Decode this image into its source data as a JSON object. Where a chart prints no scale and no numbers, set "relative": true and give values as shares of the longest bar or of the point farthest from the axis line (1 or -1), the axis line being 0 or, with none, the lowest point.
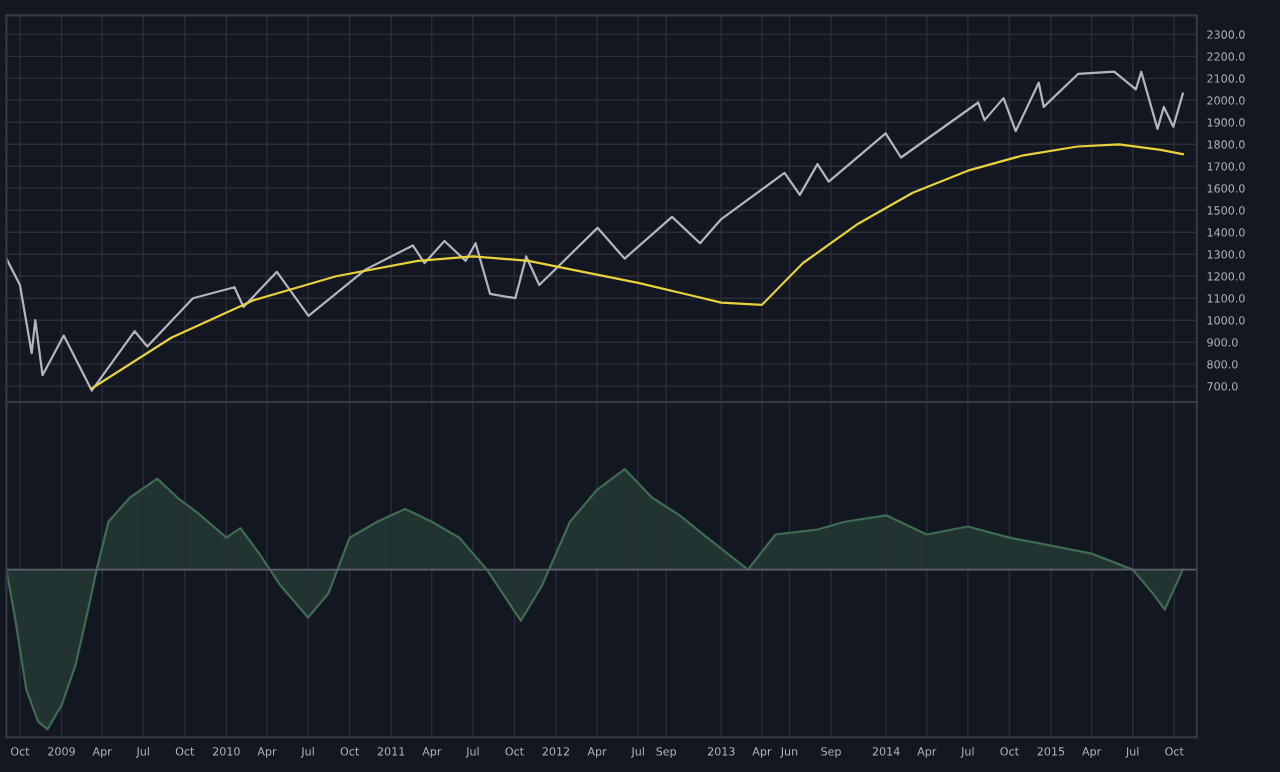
{
  "chart_data": [
    {
      "type": "line",
      "grid": true,
      "tick_labels": "y",
      "xlim": [
        "2008-09-01",
        "2015-11-20"
      ],
      "xticks": [
        {
          "value": "2008-10-01",
          "label": null
        },
        {
          "value": "2009-01-01",
          "label": null
        },
        {
          "value": "2009-04-01",
          "label": null
        },
        {
          "value": "2009-07-01",
          "label": null
        },
        {
          "value": "2009-10-01",
          "label": null
        },
        {
          "value": "2010-01-01",
          "label": null
        },
        {
          "value": "2010-04-01",
          "label": null
        },
        {
          "value": "2010-07-01",
          "label": null
        },
        {
          "value": "2010-10-01",
          "label": null
        },
        {
          "value": "2011-01-01",
          "label": null
        },
        {
          "value": "2011-04-01",
          "label": null
        },
        {
          "value": "2011-07-01",
          "label": null
        },
        {
          "value": "2011-10-01",
          "label": null
        },
        {
          "value": "2012-01-01",
          "label": null
        },
        {
          "value": "2012-04-01",
          "label": null
        },
        {
          "value": "2012-07-01",
          "label": null
        },
        {
          "value": "2012-09-01",
          "label": null
        },
        {
          "value": "2013-01-01",
          "label": null
        },
        {
          "value": "2013-04-01",
          "label": null
        },
        {
          "value": "2013-06-01",
          "label": null
        },
        {
          "value": "2013-09-01",
          "label": null
        },
        {
          "value": "2014-01-01",
          "label": null
        },
        {
          "value": "2014-04-01",
          "label": null
        },
        {
          "value": "2014-07-01",
          "label": null
        },
        {
          "value": "2014-10-01",
          "label": null
        },
        {
          "value": "2015-01-01",
          "label": null
        },
        {
          "value": "2015-04-01",
          "label": null
        },
        {
          "value": "2015-07-01",
          "label": null
        },
        {
          "value": "2015-10-01",
          "label": null
        }
      ],
      "ylim": [
        628,
        2386
      ],
      "yticks": [
        {
          "value": 700,
          "label": "700.0"
        },
        {
          "value": 800,
          "label": "800.0"
        },
        {
          "value": 900,
          "label": "900.0"
        },
        {
          "value": 1000,
          "label": "1000.0"
        },
        {
          "value": 1100,
          "label": "1100.0"
        },
        {
          "value": 1200,
          "label": "1200.0"
        },
        {
          "value": 1300,
          "label": "1300.0"
        },
        {
          "value": 1400,
          "label": "1400.0"
        },
        {
          "value": 1500,
          "label": "1500.0"
        },
        {
          "value": 1600,
          "label": "1600.0"
        },
        {
          "value": 1700,
          "label": "1700.0"
        },
        {
          "value": 1800,
          "label": "1800.0"
        },
        {
          "value": 1900,
          "label": "1900.0"
        },
        {
          "value": 2000,
          "label": "2000.0"
        },
        {
          "value": 2100,
          "label": "2100.0"
        },
        {
          "value": 2200,
          "label": "2200.0"
        },
        {
          "value": 2300,
          "label": "2300.0"
        }
      ],
      "series": [
        {
          "color": "#b2b5be",
          "x": [
            "2008-09-01",
            "2008-10-01",
            "2008-10-27",
            "2008-11-04",
            "2008-11-20",
            "2009-01-06",
            "2009-03-09",
            "2009-06-12",
            "2009-07-10",
            "2009-10-19",
            "2010-01-19",
            "2010-02-08",
            "2010-04-23",
            "2010-07-02",
            "2010-11-05",
            "2011-02-18",
            "2011-03-16",
            "2011-04-29",
            "2011-06-15",
            "2011-07-07",
            "2011-08-08",
            "2011-10-03",
            "2011-10-27",
            "2011-11-25",
            "2012-04-02",
            "2012-06-01",
            "2012-09-14",
            "2012-11-15",
            "2013-01-01",
            "2013-05-21",
            "2013-06-24",
            "2013-08-02",
            "2013-08-27",
            "2013-12-31",
            "2014-02-03",
            "2014-07-24",
            "2014-08-07",
            "2014-09-18",
            "2014-10-15",
            "2014-12-05",
            "2014-12-16",
            "2015-03-02",
            "2015-05-21",
            "2015-07-08",
            "2015-07-20",
            "2015-08-25",
            "2015-09-08",
            "2015-09-29",
            "2015-10-20"
          ],
          "values": [
            1280,
            1160,
            850,
            1000,
            750,
            930,
            680,
            950,
            880,
            1100,
            1150,
            1060,
            1220,
            1020,
            1230,
            1340,
            1260,
            1360,
            1270,
            1350,
            1120,
            1100,
            1290,
            1160,
            1420,
            1280,
            1470,
            1350,
            1460,
            1670,
            1570,
            1710,
            1630,
            1850,
            1740,
            1990,
            1910,
            2010,
            1860,
            2080,
            1970,
            2120,
            2130,
            2050,
            2130,
            1870,
            1970,
            1880,
            2030
          ]
        },
        {
          "color": "#e8d23a",
          "x": [
            "2009-03-09",
            "2009-09-01",
            "2010-03-01",
            "2010-09-01",
            "2011-03-01",
            "2011-07-01",
            "2011-11-01",
            "2012-03-01",
            "2012-07-01",
            "2012-11-01",
            "2013-01-01",
            "2013-04-01",
            "2013-07-01",
            "2013-11-01",
            "2014-03-01",
            "2014-07-01",
            "2014-11-01",
            "2015-03-01",
            "2015-06-01",
            "2015-09-01",
            "2015-10-20"
          ],
          "values": [
            690,
            920,
            1090,
            1200,
            1270,
            1290,
            1270,
            1220,
            1170,
            1110,
            1080,
            1070,
            1260,
            1440,
            1580,
            1680,
            1750,
            1790,
            1800,
            1775,
            1755
          ]
        }
      ]
    },
    {
      "type": "area",
      "relative": true,
      "grid": true,
      "tick_labels": "x",
      "xlim": [
        "2008-09-01",
        "2015-11-20"
      ],
      "xticks": [
        {
          "value": "2008-10-01",
          "label": "Oct"
        },
        {
          "value": "2009-01-01",
          "label": "2009"
        },
        {
          "value": "2009-04-01",
          "label": "Apr"
        },
        {
          "value": "2009-07-01",
          "label": "Jul"
        },
        {
          "value": "2009-10-01",
          "label": "Oct"
        },
        {
          "value": "2010-01-01",
          "label": "2010"
        },
        {
          "value": "2010-04-01",
          "label": "Apr"
        },
        {
          "value": "2010-07-01",
          "label": "Jul"
        },
        {
          "value": "2010-10-01",
          "label": "Oct"
        },
        {
          "value": "2011-01-01",
          "label": "2011"
        },
        {
          "value": "2011-04-01",
          "label": "Apr"
        },
        {
          "value": "2011-07-01",
          "label": "Jul"
        },
        {
          "value": "2011-10-01",
          "label": "Oct"
        },
        {
          "value": "2012-01-01",
          "label": "2012"
        },
        {
          "value": "2012-04-01",
          "label": "Apr"
        },
        {
          "value": "2012-07-01",
          "label": "Jul"
        },
        {
          "value": "2012-09-01",
          "label": "Sep"
        },
        {
          "value": "2013-01-01",
          "label": "2013"
        },
        {
          "value": "2013-04-01",
          "label": "Apr"
        },
        {
          "value": "2013-06-01",
          "label": "Jun"
        },
        {
          "value": "2013-09-01",
          "label": "Sep"
        },
        {
          "value": "2014-01-01",
          "label": "2014"
        },
        {
          "value": "2014-04-01",
          "label": "Apr"
        },
        {
          "value": "2014-07-01",
          "label": "Jul"
        },
        {
          "value": "2014-10-01",
          "label": "Oct"
        },
        {
          "value": "2015-01-01",
          "label": "2015"
        },
        {
          "value": "2015-04-01",
          "label": "Apr"
        },
        {
          "value": "2015-07-01",
          "label": "Jul"
        },
        {
          "value": "2015-10-01",
          "label": "Oct"
        }
      ],
      "series": [
        {
          "color": "#3f6b50",
          "x": [
            "2008-09-01",
            "2008-09-20",
            "2008-10-15",
            "2008-11-10",
            "2008-12-01",
            "2009-01-01",
            "2009-02-01",
            "2009-03-01",
            "2009-03-20",
            "2009-04-15",
            "2009-06-01",
            "2009-08-01",
            "2009-09-15",
            "2009-11-01",
            "2010-01-01",
            "2010-02-01",
            "2010-03-15",
            "2010-05-01",
            "2010-07-01",
            "2010-08-15",
            "2010-10-01",
            "2010-12-01",
            "2011-02-01",
            "2011-04-01",
            "2011-06-01",
            "2011-08-01",
            "2011-10-15",
            "2011-12-01",
            "2012-02-01",
            "2012-04-01",
            "2012-06-01",
            "2012-08-01",
            "2012-10-01",
            "2012-12-01",
            "2013-03-01",
            "2013-05-01",
            "2013-08-01",
            "2013-10-01",
            "2014-01-01",
            "2014-04-01",
            "2014-07-01",
            "2014-10-01",
            "2015-01-01",
            "2015-04-01",
            "2015-07-01",
            "2015-08-15",
            "2015-09-10",
            "2015-10-20"
          ],
          "values": [
            0,
            -0.3,
            -0.75,
            -0.95,
            -1.0,
            -0.85,
            -0.6,
            -0.25,
            0,
            0.3,
            0.45,
            0.57,
            0.45,
            0.35,
            0.2,
            0.26,
            0.1,
            -0.1,
            -0.3,
            -0.15,
            0.2,
            0.3,
            0.38,
            0.3,
            0.2,
            0,
            -0.32,
            -0.1,
            0.3,
            0.5,
            0.63,
            0.45,
            0.34,
            0.2,
            0,
            0.22,
            0.25,
            0.3,
            0.34,
            0.22,
            0.27,
            0.2,
            0.15,
            0.1,
            0,
            -0.15,
            -0.25,
            0
          ]
        }
      ]
    }
  ]
}
